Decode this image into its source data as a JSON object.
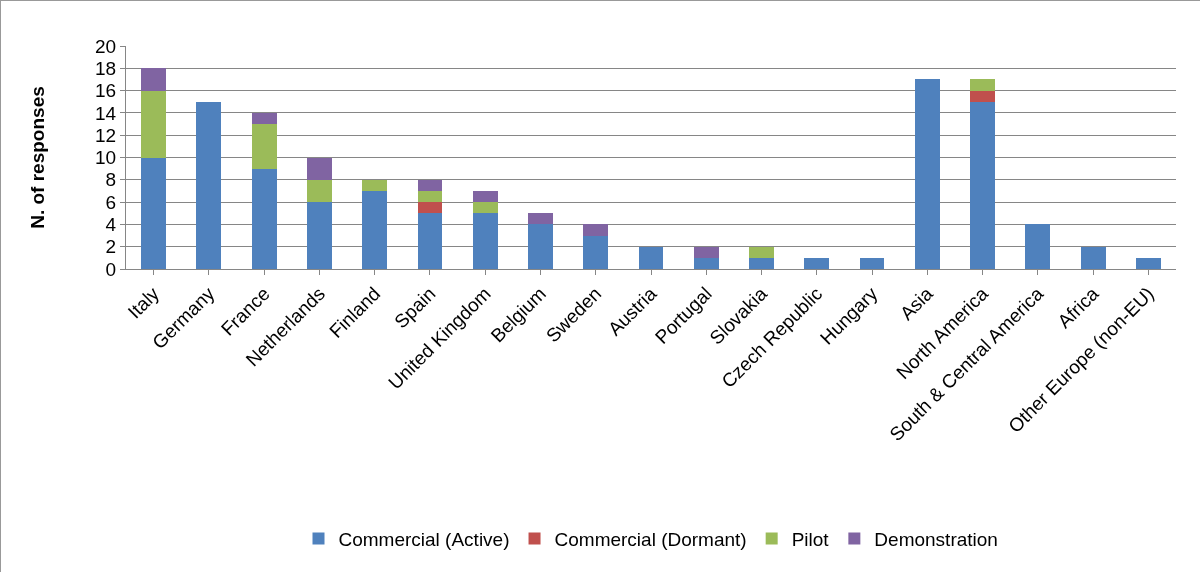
{
  "chart_data": {
    "type": "bar",
    "stacked": true,
    "ylabel": "N. of responses",
    "categories": [
      "Italy",
      "Germany",
      "France",
      "Netherlands",
      "Finland",
      "Spain",
      "United Kingdom",
      "Belgium",
      "Sweden",
      "Austria",
      "Portugal",
      "Slovakia",
      "Czech Republic",
      "Hungary",
      "Asia",
      "North America",
      "South & Central America",
      "Africa",
      "Other Europe (non-EU)"
    ],
    "series": [
      {
        "name": "Commercial (Active)",
        "color": "#4f81bd",
        "values": [
          10,
          15,
          9,
          6,
          7,
          5,
          5,
          4,
          3,
          2,
          1,
          1,
          1,
          1,
          17,
          15,
          4,
          2,
          1
        ]
      },
      {
        "name": "Commercial (Dormant)",
        "color": "#c0504d",
        "values": [
          0,
          0,
          0,
          0,
          0,
          1,
          0,
          0,
          0,
          0,
          0,
          0,
          0,
          0,
          0,
          1,
          0,
          0,
          0
        ]
      },
      {
        "name": "Pilot",
        "color": "#9bbb59",
        "values": [
          6,
          0,
          4,
          2,
          1,
          1,
          1,
          0,
          0,
          0,
          0,
          1,
          0,
          0,
          0,
          1,
          0,
          0,
          0
        ]
      },
      {
        "name": "Demonstration",
        "color": "#8064a2",
        "values": [
          2,
          0,
          1,
          2,
          0,
          1,
          1,
          1,
          1,
          0,
          1,
          0,
          0,
          0,
          0,
          0,
          0,
          0,
          0
        ]
      }
    ],
    "ylim": [
      0,
      20
    ],
    "yticks": [
      0,
      2,
      4,
      6,
      8,
      10,
      12,
      14,
      16,
      18,
      20
    ],
    "grid": "y",
    "legend": "bottom"
  }
}
